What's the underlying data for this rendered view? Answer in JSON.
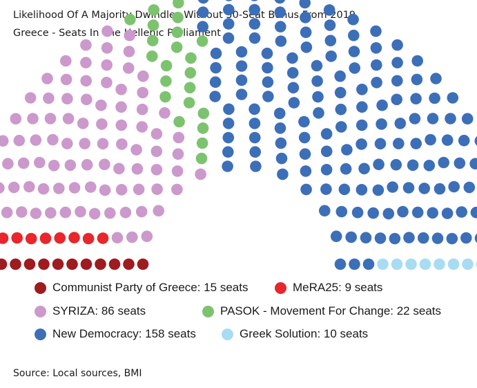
{
  "title": "Likelihood Of A Majority Dwindles Without 50-Seat Bonus From 2019",
  "subtitle": "Greece - Seats In The Hellenic Parliament",
  "source": "Source: Local sources, BMI",
  "legend": [
    {
      "label": "Communist Party of Greece: 15 seats",
      "color": "#9e1b1f"
    },
    {
      "label": "MeRA25: 9 seats",
      "color": "#e8262b"
    },
    {
      "label": "SYRIZA: 86 seats",
      "color": "#cc99cc"
    },
    {
      "label": "PASOK - Movement For Change: 22 seats",
      "color": "#7dc36f"
    },
    {
      "label": "New Democracy: 158 seats",
      "color": "#3d6fb8"
    },
    {
      "label": "Greek Solution: 10 seats",
      "color": "#a8dcf2"
    }
  ],
  "chart_data": {
    "type": "parliament",
    "title": "Likelihood Of A Majority Dwindles Without 50-Seat Bonus From 2019",
    "subtitle": "Greece - Seats In The Hellenic Parliament",
    "total_seats": 300,
    "series": [
      {
        "name": "Communist Party of Greece",
        "seats": 15,
        "color": "#9e1b1f"
      },
      {
        "name": "MeRA25",
        "seats": 9,
        "color": "#e8262b"
      },
      {
        "name": "SYRIZA",
        "seats": 86,
        "color": "#cc99cc"
      },
      {
        "name": "PASOK - Movement For Change",
        "seats": 22,
        "color": "#7dc36f"
      },
      {
        "name": "New Democracy",
        "seats": 158,
        "color": "#3d6fb8"
      },
      {
        "name": "Greek Solution",
        "seats": 10,
        "color": "#a8dcf2"
      }
    ]
  }
}
